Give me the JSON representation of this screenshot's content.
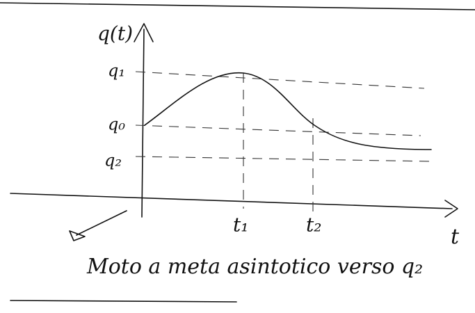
{
  "axis_labels": {
    "y": "q(t)",
    "x": "t"
  },
  "levels": [
    "q₁",
    "q₀",
    "q₂"
  ],
  "times": [
    "t₁",
    "t₂"
  ],
  "caption": "Moto a meta asintotico verso q₂"
}
